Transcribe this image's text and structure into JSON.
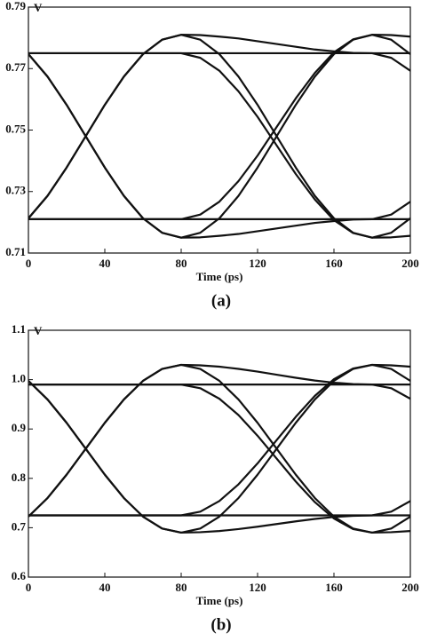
{
  "chart_data": [
    {
      "type": "line",
      "caption": "(a)",
      "xlabel": "Time (ps)",
      "y_unit": "V",
      "xlim": [
        0,
        200
      ],
      "xticks": [
        0,
        40,
        80,
        120,
        160,
        200
      ],
      "ylim": [
        0.71,
        0.79
      ],
      "yticks": [
        0.71,
        0.73,
        0.75,
        0.77,
        0.79
      ],
      "x": [
        0,
        10,
        20,
        30,
        40,
        50,
        60,
        70,
        80,
        90,
        100,
        110,
        120,
        130,
        140,
        150,
        160,
        170,
        180,
        190,
        200
      ],
      "series": [
        {
          "color": "#111111",
          "values": [
            0.775,
            0.775,
            0.775,
            0.775,
            0.775,
            0.775,
            0.775,
            0.775,
            0.775,
            0.775,
            0.775,
            0.775,
            0.775,
            0.775,
            0.775,
            0.775,
            0.775,
            0.775,
            0.775,
            0.775,
            0.775
          ]
        },
        {
          "color": "#111111",
          "values": [
            0.721,
            0.721,
            0.721,
            0.721,
            0.721,
            0.721,
            0.721,
            0.721,
            0.721,
            0.721,
            0.721,
            0.721,
            0.721,
            0.721,
            0.721,
            0.721,
            0.721,
            0.721,
            0.721,
            0.721,
            0.721
          ]
        },
        {
          "color": "#111111",
          "values": [
            0.7747,
            0.7674,
            0.7582,
            0.748,
            0.7378,
            0.7286,
            0.7213,
            0.7166,
            0.715,
            0.7166,
            0.7213,
            0.7286,
            0.7378,
            0.748,
            0.7582,
            0.7674,
            0.7747,
            0.7794,
            0.781,
            0.7794,
            0.7747
          ]
        },
        {
          "color": "#111111",
          "values": [
            0.7213,
            0.7286,
            0.7378,
            0.748,
            0.7582,
            0.7674,
            0.7747,
            0.7794,
            0.781,
            0.7794,
            0.7747,
            0.7674,
            0.7582,
            0.748,
            0.7378,
            0.7286,
            0.7213,
            0.7166,
            0.715,
            0.7166,
            0.7213
          ]
        },
        {
          "color": "#111111",
          "values": [
            0.775,
            0.775,
            0.775,
            0.775,
            0.775,
            0.775,
            0.775,
            0.775,
            0.775,
            0.7735,
            0.7693,
            0.7626,
            0.7543,
            0.745,
            0.7357,
            0.7274,
            0.7207,
            0.7165,
            0.715,
            0.7151,
            0.7156
          ]
        },
        {
          "color": "#111111",
          "values": [
            0.721,
            0.721,
            0.721,
            0.721,
            0.721,
            0.721,
            0.721,
            0.721,
            0.721,
            0.7225,
            0.7267,
            0.7334,
            0.7417,
            0.751,
            0.7603,
            0.7686,
            0.7753,
            0.7795,
            0.781,
            0.7809,
            0.7804
          ]
        },
        {
          "color": "#111111",
          "values": [
            0.7747,
            0.7674,
            0.7582,
            0.748,
            0.7378,
            0.7286,
            0.7213,
            0.7166,
            0.715,
            0.7151,
            0.7156,
            0.7162,
            0.7171,
            0.718,
            0.7189,
            0.7198,
            0.7204,
            0.7209,
            0.721,
            0.7225,
            0.7267
          ]
        },
        {
          "color": "#111111",
          "values": [
            0.7213,
            0.7286,
            0.7378,
            0.748,
            0.7582,
            0.7674,
            0.7747,
            0.7794,
            0.781,
            0.7809,
            0.7804,
            0.7798,
            0.7789,
            0.778,
            0.7771,
            0.7762,
            0.7756,
            0.7751,
            0.775,
            0.7735,
            0.7693
          ]
        }
      ]
    },
    {
      "type": "line",
      "caption": "(b)",
      "xlabel": "Time (ps)",
      "y_unit": "V",
      "xlim": [
        0,
        200
      ],
      "xticks": [
        0,
        40,
        80,
        120,
        160,
        200
      ],
      "ylim": [
        0.6,
        1.1
      ],
      "yticks": [
        0.6,
        0.7,
        0.8,
        0.9,
        {
          "value": 1,
          "label": "1.0"
        },
        1.1
      ],
      "x": [
        0,
        10,
        20,
        30,
        40,
        50,
        60,
        70,
        80,
        90,
        100,
        110,
        120,
        130,
        140,
        150,
        160,
        170,
        180,
        190,
        200
      ],
      "series": [
        {
          "color": "#111111",
          "values": [
            0.99,
            0.99,
            0.99,
            0.99,
            0.99,
            0.99,
            0.99,
            0.99,
            0.99,
            0.99,
            0.99,
            0.99,
            0.99,
            0.99,
            0.99,
            0.99,
            0.99,
            0.99,
            0.99,
            0.99,
            0.99
          ]
        },
        {
          "color": "#111111",
          "values": [
            0.725,
            0.725,
            0.725,
            0.725,
            0.725,
            0.725,
            0.725,
            0.725,
            0.725,
            0.725,
            0.725,
            0.725,
            0.725,
            0.725,
            0.725,
            0.725,
            0.725,
            0.725,
            0.725,
            0.725,
            0.725
          ]
        },
        {
          "color": "#111111",
          "values": [
            0.9975,
            0.9599,
            0.9125,
            0.86,
            0.8075,
            0.7601,
            0.7225,
            0.6983,
            0.69,
            0.6983,
            0.7225,
            0.7601,
            0.8075,
            0.86,
            0.9125,
            0.9599,
            0.9975,
            1.0217,
            1.03,
            1.0217,
            0.9975
          ]
        },
        {
          "color": "#111111",
          "values": [
            0.7225,
            0.7601,
            0.8075,
            0.86,
            0.9125,
            0.9599,
            0.9975,
            1.0217,
            1.03,
            1.0217,
            0.9975,
            0.9599,
            0.9125,
            0.86,
            0.8075,
            0.7601,
            0.7225,
            0.6983,
            0.69,
            0.6983,
            0.7225
          ]
        },
        {
          "color": "#111111",
          "values": [
            0.99,
            0.99,
            0.99,
            0.99,
            0.99,
            0.99,
            0.99,
            0.99,
            0.99,
            0.9826,
            0.9613,
            0.9282,
            0.8863,
            0.84,
            0.7936,
            0.7518,
            0.7186,
            0.6973,
            0.69,
            0.6909,
            0.6933
          ]
        },
        {
          "color": "#111111",
          "values": [
            0.725,
            0.725,
            0.725,
            0.725,
            0.725,
            0.725,
            0.725,
            0.725,
            0.725,
            0.7325,
            0.7541,
            0.7879,
            0.8304,
            0.8775,
            0.9246,
            0.9671,
            1.0009,
            1.0225,
            1.03,
            1.029,
            1.0262
          ]
        },
        {
          "color": "#111111",
          "values": [
            0.9975,
            0.9599,
            0.9125,
            0.86,
            0.8075,
            0.7601,
            0.7225,
            0.6983,
            0.69,
            0.6909,
            0.6933,
            0.6972,
            0.7021,
            0.7075,
            0.7129,
            0.7178,
            0.7217,
            0.7241,
            0.725,
            0.7325,
            0.7541
          ]
        },
        {
          "color": "#111111",
          "values": [
            0.7225,
            0.7601,
            0.8075,
            0.86,
            0.9125,
            0.9599,
            0.9975,
            1.0217,
            1.03,
            1.029,
            1.0262,
            1.0218,
            1.0162,
            1.01,
            1.0038,
            0.9982,
            0.9938,
            0.991,
            0.99,
            0.9826,
            0.9613
          ]
        }
      ]
    }
  ]
}
